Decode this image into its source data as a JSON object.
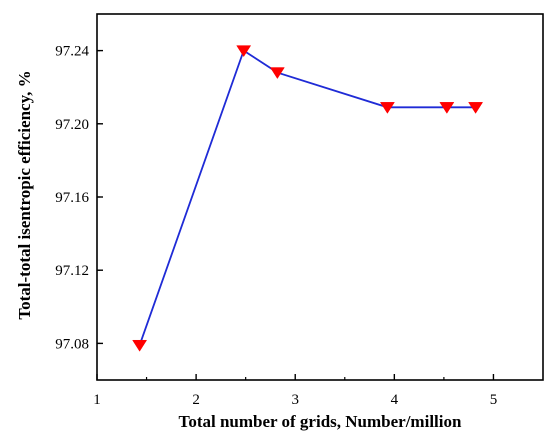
{
  "chart_data": {
    "type": "line",
    "xlabel": "Total number of grids, Number/million",
    "ylabel": "Total-total isentropic efficiency, %",
    "xlim": [
      1,
      5.5
    ],
    "ylim": [
      97.06,
      97.26
    ],
    "xticks": [
      1,
      2,
      3,
      4,
      5
    ],
    "yticks": [
      97.08,
      97.12,
      97.16,
      97.2,
      97.24
    ],
    "xtick_labels": [
      "1",
      "2",
      "3",
      "4",
      "5"
    ],
    "ytick_labels": [
      "97.08",
      "97.12",
      "97.16",
      "97.20",
      "97.24"
    ],
    "grid": false,
    "legend": "none",
    "series": [
      {
        "x": [
          1.43,
          2.48,
          2.82,
          3.93,
          4.53,
          4.82
        ],
        "y": [
          97.079,
          97.24,
          97.228,
          97.209,
          97.209,
          97.209
        ],
        "line_color": "#1f2bd6",
        "marker": "down-triangle",
        "marker_color": "#ff0000"
      }
    ]
  }
}
